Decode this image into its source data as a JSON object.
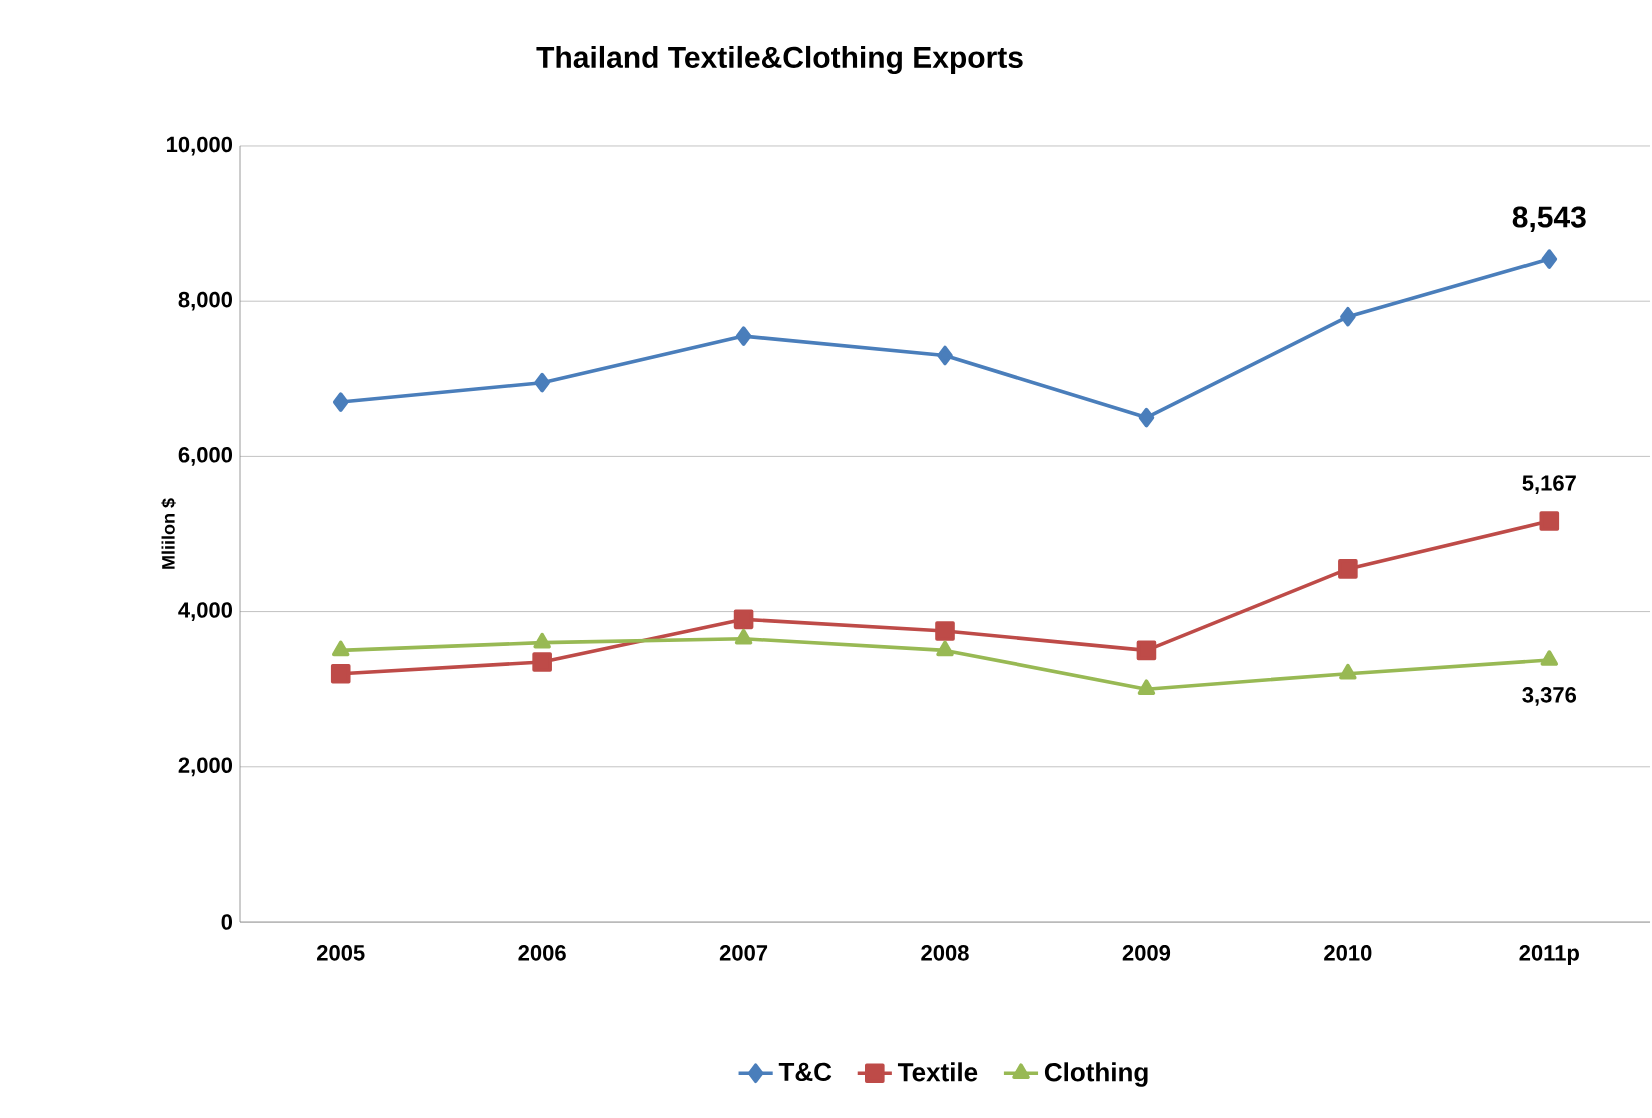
{
  "chart_data": {
    "type": "line",
    "title": "Thailand Textile&Clothing Exports",
    "ylabel": "Mliilon $",
    "categories": [
      "2005",
      "2006",
      "2007",
      "2008",
      "2009",
      "2010",
      "2011p"
    ],
    "series": [
      {
        "name": "T&C",
        "color": "#4a7ebb",
        "marker": "diamond",
        "values": [
          6700,
          6950,
          7550,
          7300,
          6500,
          7800,
          8543
        ],
        "value_labels": [
          null,
          null,
          null,
          null,
          null,
          null,
          "8,543"
        ]
      },
      {
        "name": "Textile",
        "color": "#be4b48",
        "marker": "square",
        "values": [
          3200,
          3350,
          3900,
          3750,
          3500,
          4550,
          5167
        ],
        "value_labels": [
          null,
          null,
          null,
          null,
          null,
          null,
          "5,167"
        ]
      },
      {
        "name": "Clothing",
        "color": "#98b954",
        "marker": "triangle",
        "values": [
          3500,
          3600,
          3650,
          3500,
          3000,
          3200,
          3376
        ],
        "value_labels": [
          null,
          null,
          null,
          null,
          null,
          null,
          "3,376"
        ]
      }
    ],
    "ylim": [
      0,
      10000
    ],
    "yticks": [
      {
        "value": 0,
        "label": "0"
      },
      {
        "value": 2000,
        "label": "2,000"
      },
      {
        "value": 4000,
        "label": "4,000"
      },
      {
        "value": 6000,
        "label": "6,000"
      },
      {
        "value": 8000,
        "label": "8,000"
      },
      {
        "value": 10000,
        "label": "10,000"
      }
    ],
    "grid": "y",
    "legend": "bottom",
    "line_style": "solid"
  }
}
